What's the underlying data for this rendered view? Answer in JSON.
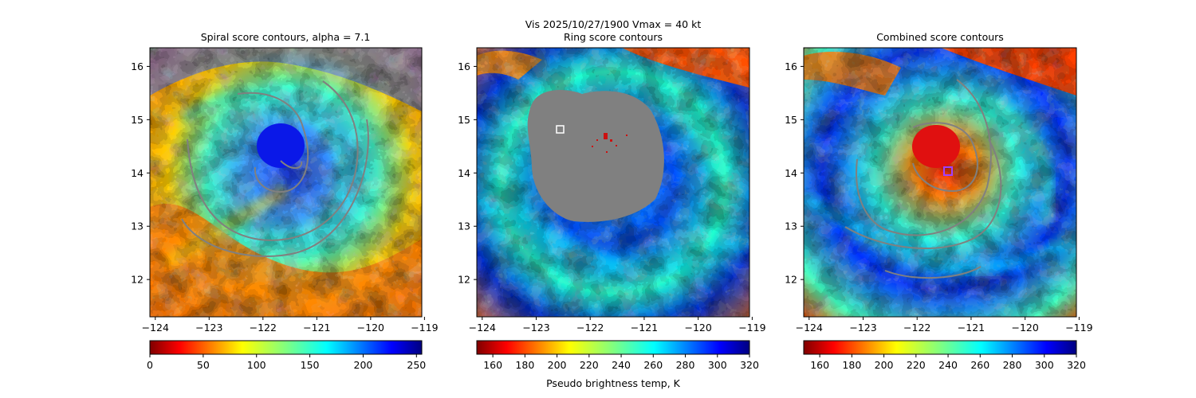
{
  "figure": {
    "suptitle_line1": "Vis  2025/10/27/1900    Vmax = 40 kt",
    "colorbar_label": "Pseudo brightness temp, K"
  },
  "chart_data": [
    {
      "type": "heatmap",
      "title": "Spiral score contours, alpha =  7.1",
      "x_ticks": [
        "−124",
        "−123",
        "−122",
        "−121",
        "−120",
        "−119"
      ],
      "x_tick_values": [
        -124,
        -123,
        -122,
        -121,
        -120,
        -119
      ],
      "y_ticks": [
        "12",
        "13",
        "14",
        "15",
        "16"
      ],
      "y_tick_values": [
        12,
        13,
        14,
        15,
        16
      ],
      "xlim": [
        -124.1,
        -119.05
      ],
      "ylim": [
        11.3,
        16.35
      ],
      "colorbar": {
        "colormap": "jet_r",
        "range": [
          0,
          255
        ],
        "ticks": [
          "0",
          "50",
          "100",
          "150",
          "200",
          "250"
        ],
        "tick_values": [
          0,
          50,
          100,
          150,
          200,
          250
        ]
      },
      "center": {
        "lon": -121.3,
        "lat": 14.05
      },
      "cold_region": {
        "lon": -121.6,
        "lat": 14.5,
        "label": "dense blue cloud"
      },
      "contour_color": "#808080"
    },
    {
      "type": "heatmap",
      "title": "Ring score contours",
      "x_ticks": [
        "−124",
        "−123",
        "−122",
        "−121",
        "−120",
        "−119"
      ],
      "x_tick_values": [
        -124,
        -123,
        -122,
        -121,
        -120,
        -119
      ],
      "y_ticks": [
        "12",
        "13",
        "14",
        "15",
        "16"
      ],
      "y_tick_values": [
        12,
        13,
        14,
        15,
        16
      ],
      "xlim": [
        -124.1,
        -119.05
      ],
      "ylim": [
        11.3,
        16.35
      ],
      "colorbar": {
        "colormap": "jet_r",
        "range": [
          150,
          320
        ],
        "ticks": [
          "160",
          "180",
          "200",
          "220",
          "240",
          "260",
          "280",
          "300",
          "320"
        ],
        "tick_values": [
          160,
          180,
          200,
          220,
          240,
          260,
          280,
          300,
          320
        ]
      },
      "masked_region": {
        "lon": -121.7,
        "lat": 14.2,
        "color": "#808080"
      },
      "marker": {
        "lon": -122.5,
        "lat": 14.8,
        "shape": "square",
        "color": "#ffffff"
      }
    },
    {
      "type": "heatmap",
      "title": "Combined score contours",
      "x_ticks": [
        "−124",
        "−123",
        "−122",
        "−121",
        "−120",
        "−119"
      ],
      "x_tick_values": [
        -124,
        -123,
        -122,
        -121,
        -120,
        -119
      ],
      "y_ticks": [
        "12",
        "13",
        "14",
        "15",
        "16"
      ],
      "y_tick_values": [
        12,
        13,
        14,
        15,
        16
      ],
      "xlim": [
        -124.1,
        -119.05
      ],
      "ylim": [
        11.3,
        16.35
      ],
      "colorbar": {
        "colormap": "jet_r",
        "range": [
          150,
          320
        ],
        "ticks": [
          "160",
          "180",
          "200",
          "220",
          "240",
          "260",
          "280",
          "300",
          "320"
        ],
        "tick_values": [
          160,
          180,
          200,
          220,
          240,
          260,
          280,
          300,
          320
        ]
      },
      "warm_region": {
        "lon": -121.6,
        "lat": 14.6,
        "label": "warm red core"
      },
      "marker": {
        "lon": -121.35,
        "lat": 14.02,
        "shape": "square",
        "color": "#a040ff"
      },
      "contour_color": "#808080"
    }
  ]
}
